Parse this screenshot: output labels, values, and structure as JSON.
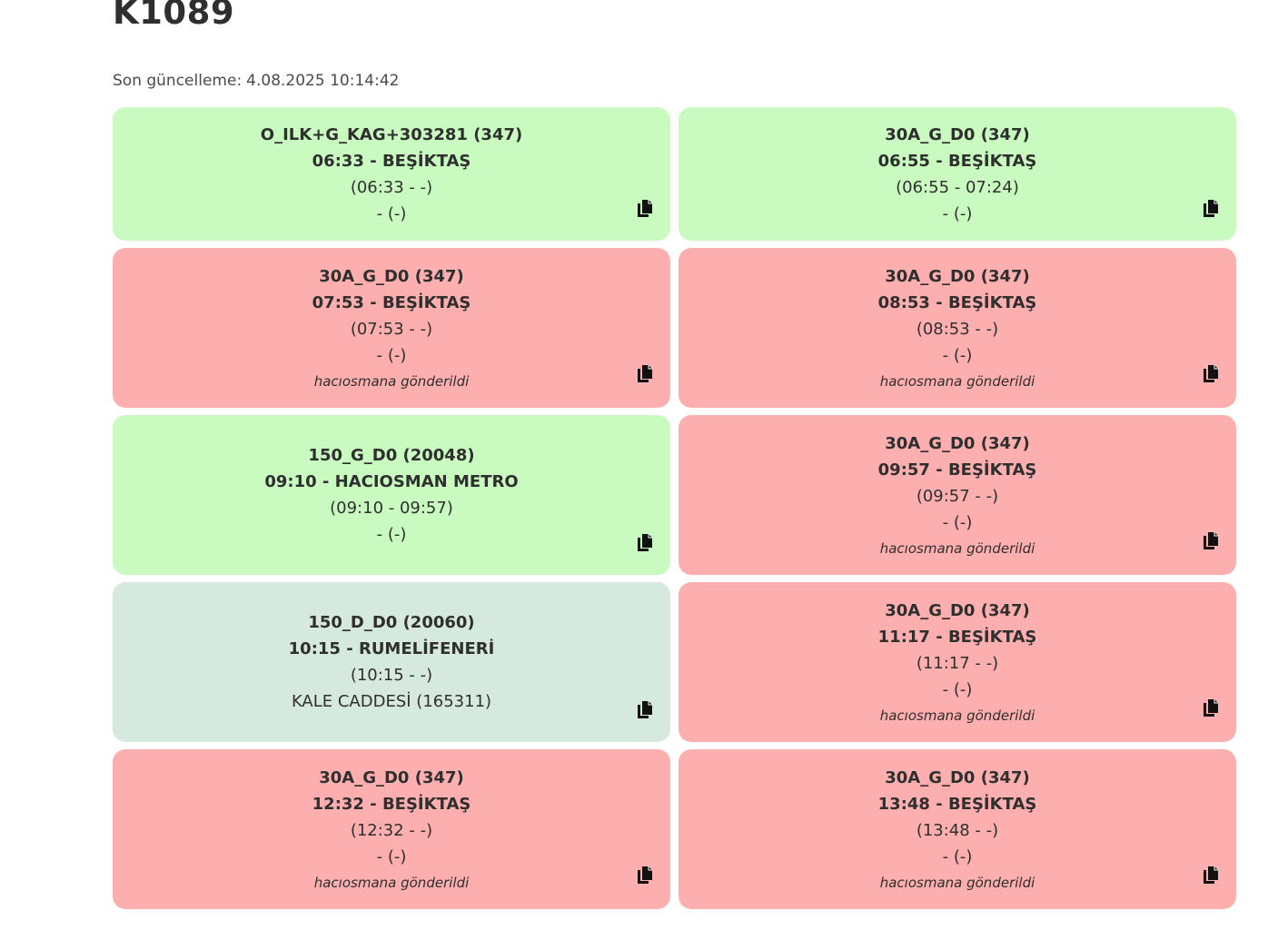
{
  "header": {
    "title": "K1089",
    "updated_label": "Son güncelleme:",
    "updated_value": "4.08.2025 10:14:42"
  },
  "colors": {
    "green": "#c9fbc0",
    "red": "#fdaeae",
    "teal": "#d6e9de",
    "text": "#2f2f2f"
  },
  "copy_icon": "copy-icon",
  "cards": [
    {
      "status": "green",
      "route": "O_ILK+G_KAG+303281 (347)",
      "departure": "06:33 - BEŞİKTAŞ",
      "window": "(06:33 - -)",
      "stop": "- (-)",
      "note": ""
    },
    {
      "status": "green",
      "route": "30A_G_D0 (347)",
      "departure": "06:55 - BEŞİKTAŞ",
      "window": "(06:55 - 07:24)",
      "stop": "- (-)",
      "note": ""
    },
    {
      "status": "red",
      "route": "30A_G_D0 (347)",
      "departure": "07:53 - BEŞİKTAŞ",
      "window": "(07:53 - -)",
      "stop": "- (-)",
      "note": "hacıosmana gönderildi"
    },
    {
      "status": "red",
      "route": "30A_G_D0 (347)",
      "departure": "08:53 - BEŞİKTAŞ",
      "window": "(08:53 - -)",
      "stop": "- (-)",
      "note": "hacıosmana gönderildi"
    },
    {
      "status": "green",
      "route": "150_G_D0 (20048)",
      "departure": "09:10 - HACIOSMAN METRO",
      "window": "(09:10 - 09:57)",
      "stop": "- (-)",
      "note": ""
    },
    {
      "status": "red",
      "route": "30A_G_D0 (347)",
      "departure": "09:57 - BEŞİKTAŞ",
      "window": "(09:57 - -)",
      "stop": "- (-)",
      "note": "hacıosmana gönderildi"
    },
    {
      "status": "teal",
      "route": "150_D_D0 (20060)",
      "departure": "10:15 - RUMELİFENERİ",
      "window": "(10:15 - -)",
      "stop": "KALE CADDESİ (165311)",
      "note": ""
    },
    {
      "status": "red",
      "route": "30A_G_D0 (347)",
      "departure": "11:17 - BEŞİKTAŞ",
      "window": "(11:17 - -)",
      "stop": "- (-)",
      "note": "hacıosmana gönderildi"
    },
    {
      "status": "red",
      "route": "30A_G_D0 (347)",
      "departure": "12:32 - BEŞİKTAŞ",
      "window": "(12:32 - -)",
      "stop": "- (-)",
      "note": "hacıosmana gönderildi"
    },
    {
      "status": "red",
      "route": "30A_G_D0 (347)",
      "departure": "13:48 - BEŞİKTAŞ",
      "window": "(13:48 - -)",
      "stop": "- (-)",
      "note": "hacıosmana gönderildi"
    }
  ]
}
